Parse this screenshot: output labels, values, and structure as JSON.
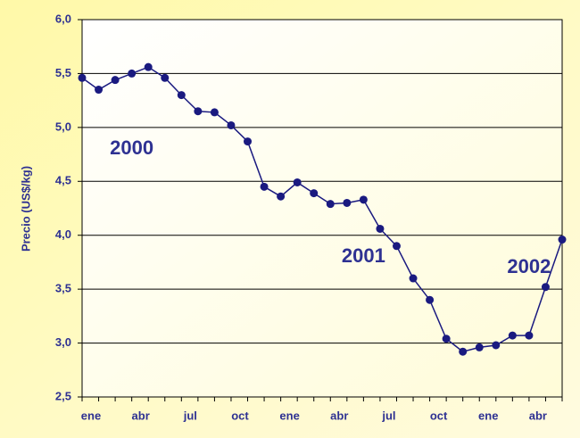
{
  "chart_data": {
    "type": "line",
    "y_label": "Precio (US$/kg)",
    "categories": [
      "ene",
      null,
      null,
      "abr",
      null,
      null,
      "jul",
      null,
      null,
      "oct",
      null,
      null,
      "ene",
      null,
      null,
      "abr",
      null,
      null,
      "jul",
      null,
      null,
      "oct",
      null,
      null,
      "ene",
      null,
      null,
      "abr",
      null,
      null
    ],
    "series": [
      {
        "name": "Precio",
        "color": "#1a1a80",
        "values": [
          5.46,
          5.35,
          5.44,
          5.5,
          5.56,
          5.46,
          5.3,
          5.15,
          5.14,
          5.02,
          4.87,
          4.45,
          4.36,
          4.49,
          4.39,
          4.29,
          4.3,
          4.33,
          4.06,
          3.9,
          3.6,
          3.4,
          3.04,
          2.92,
          2.96,
          2.98,
          3.07,
          3.07,
          3.52,
          3.96
        ]
      }
    ],
    "ylim": [
      2.5,
      6.0
    ],
    "yticks": [
      {
        "value": 2.5,
        "label": "2,5"
      },
      {
        "value": 3.0,
        "label": "3,0"
      },
      {
        "value": 3.5,
        "label": "3,5"
      },
      {
        "value": 4.0,
        "label": "4,0"
      },
      {
        "value": 4.5,
        "label": "4,5"
      },
      {
        "value": 5.0,
        "label": "5,0"
      },
      {
        "value": 5.5,
        "label": "5,5"
      },
      {
        "value": 6.0,
        "label": "6,0"
      }
    ],
    "grid": true,
    "annotations": [
      {
        "text": "2000",
        "index": 3
      },
      {
        "text": "2001",
        "index": 17
      },
      {
        "text": "2002",
        "index": 27
      }
    ]
  }
}
